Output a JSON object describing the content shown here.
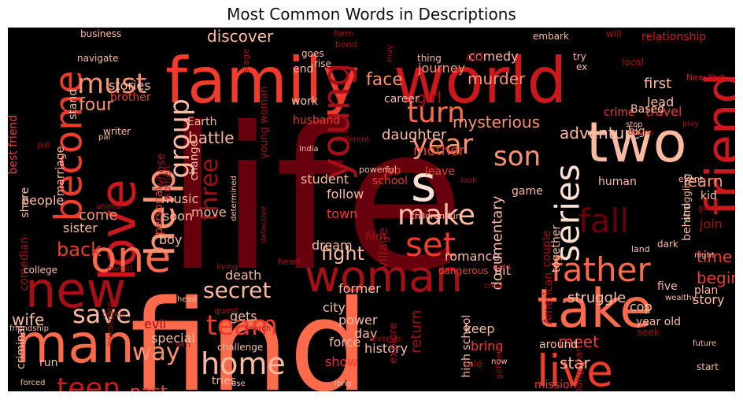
{
  "chart_data": {
    "type": "wordcloud",
    "title": "Most Common Words in Descriptions",
    "background": "#000000",
    "palette": [
      "#67000d",
      "#a50f15",
      "#cb181d",
      "#ef3b2c",
      "#fb6a4a",
      "#fc9272",
      "#fcbba1",
      "#fee0d2"
    ],
    "words": [
      {
        "text": "life",
        "color": "#67000d"
      },
      {
        "text": "find",
        "color": "#fb6a4a"
      },
      {
        "text": "family",
        "color": "#ef3b2c"
      },
      {
        "text": "world",
        "color": "#cb181d"
      },
      {
        "text": "new",
        "color": "#a50f15"
      },
      {
        "text": "man",
        "color": "#fb6a4a"
      },
      {
        "text": "love",
        "color": "#cb181d"
      },
      {
        "text": "woman",
        "color": "#a50f15"
      },
      {
        "text": "take",
        "color": "#fb6a4a"
      },
      {
        "text": "two",
        "color": "#fcbba1"
      },
      {
        "text": "friend",
        "color": "#cb181d"
      },
      {
        "text": "live",
        "color": "#ef3b2c"
      },
      {
        "text": "one",
        "color": "#fb6a4a"
      },
      {
        "text": "help",
        "color": "#fc9272"
      },
      {
        "text": "become",
        "color": "#ef3b2c"
      },
      {
        "text": "s",
        "color": "#fee0d2"
      },
      {
        "text": "young",
        "color": "#a50f15"
      },
      {
        "text": "father",
        "color": "#fb6a4a"
      },
      {
        "text": "home",
        "color": "#fcbba1"
      },
      {
        "text": "team",
        "color": "#ef3b2c"
      },
      {
        "text": "teen",
        "color": "#cb181d"
      },
      {
        "text": "save",
        "color": "#fcbba1"
      },
      {
        "text": "set",
        "color": "#ef3b2c"
      },
      {
        "text": "make",
        "color": "#fcbba1"
      },
      {
        "text": "series",
        "color": "#fee0d2"
      },
      {
        "text": "fall",
        "color": "#67000d"
      },
      {
        "text": "son",
        "color": "#fc9272"
      },
      {
        "text": "year",
        "color": "#fc9272"
      },
      {
        "text": "turn",
        "color": "#fb6a4a"
      },
      {
        "text": "must",
        "color": "#fc9272"
      },
      {
        "text": "group",
        "color": "#fcbba1"
      },
      {
        "text": "three",
        "color": "#a50f15"
      },
      {
        "text": "way",
        "color": "#fc9272"
      },
      {
        "text": "secret",
        "color": "#fcbba1"
      },
      {
        "text": "back",
        "color": "#ef3b2c"
      },
      {
        "text": "fight",
        "color": "#fcbba1"
      },
      {
        "text": "past",
        "color": "#ef3b2c"
      },
      {
        "text": "wife",
        "color": "#fcbba1"
      },
      {
        "text": "discover",
        "color": "#fcbba1"
      },
      {
        "text": "face",
        "color": "#fc9272"
      },
      {
        "text": "four",
        "color": "#fc9272"
      },
      {
        "text": "battle",
        "color": "#fcbba1"
      },
      {
        "text": "stories",
        "color": "#fcbba1"
      },
      {
        "text": "journey",
        "color": "#fc9272"
      },
      {
        "text": "murder",
        "color": "#fc9272"
      },
      {
        "text": "relationship",
        "color": "#cb181d"
      },
      {
        "text": "first",
        "color": "#fcbba1"
      },
      {
        "text": "lead",
        "color": "#fcbba1"
      },
      {
        "text": "crime",
        "color": "#ef3b2c"
      },
      {
        "text": "travel",
        "color": "#ef3b2c"
      },
      {
        "text": "New York",
        "color": "#cb181d"
      },
      {
        "text": "girl",
        "color": "#a50f15"
      },
      {
        "text": "mysterious",
        "color": "#fc9272"
      },
      {
        "text": "adventure",
        "color": "#fcbba1"
      },
      {
        "text": "daughter",
        "color": "#fcbba1"
      },
      {
        "text": "mother",
        "color": "#ef3b2c"
      },
      {
        "text": "documentary",
        "color": "#fcbba1"
      },
      {
        "text": "time",
        "color": "#ef3b2c"
      },
      {
        "text": "begin",
        "color": "#ef3b2c"
      },
      {
        "text": "learn",
        "color": "#fc9272"
      },
      {
        "text": "struggle",
        "color": "#fcbba1"
      },
      {
        "text": "meet",
        "color": "#ef3b2c"
      },
      {
        "text": "star",
        "color": "#fcbba1"
      },
      {
        "text": "return",
        "color": "#a50f15"
      },
      {
        "text": "high school",
        "color": "#fcbba1"
      },
      {
        "text": "husband",
        "color": "#ef3b2c"
      },
      {
        "text": "student",
        "color": "#fcbba1"
      },
      {
        "text": "follow",
        "color": "#fcbba1"
      },
      {
        "text": "town",
        "color": "#ef3b2c"
      },
      {
        "text": "dream",
        "color": "#fcbba1"
      },
      {
        "text": "village",
        "color": "#a50f15"
      },
      {
        "text": "romance",
        "color": "#fcbba1"
      },
      {
        "text": "film",
        "color": "#a50f15"
      },
      {
        "text": "comedy",
        "color": "#fcbba1"
      },
      {
        "text": "career",
        "color": "#fcbba1"
      },
      {
        "text": "work",
        "color": "#fcbba1"
      },
      {
        "text": "Earth",
        "color": "#fcbba1"
      },
      {
        "text": "change",
        "color": "#fcbba1"
      },
      {
        "text": "brother",
        "color": "#ef3b2c"
      },
      {
        "text": "Based",
        "color": "#fcbba1"
      },
      {
        "text": "big",
        "color": "#fcbba1"
      },
      {
        "text": "human",
        "color": "#fcbba1"
      },
      {
        "text": "kid",
        "color": "#fcbba1"
      },
      {
        "text": "join",
        "color": "#a50f15"
      },
      {
        "text": "behind",
        "color": "#fcbba1"
      },
      {
        "text": "game",
        "color": "#fcbba1"
      },
      {
        "text": "job",
        "color": "#ef3b2c"
      },
      {
        "text": "leave",
        "color": "#ef3b2c"
      },
      {
        "text": "school",
        "color": "#ef3b2c"
      },
      {
        "text": "sister",
        "color": "#fcbba1"
      },
      {
        "text": "come",
        "color": "#fc9272"
      },
      {
        "text": "people",
        "color": "#fcbba1"
      },
      {
        "text": "soon",
        "color": "#fcbba1"
      },
      {
        "text": "music",
        "color": "#fcbba1"
      },
      {
        "text": "move",
        "color": "#fcbba1"
      },
      {
        "text": "personal",
        "color": "#ef3b2c"
      },
      {
        "text": "women",
        "color": "#a50f15"
      },
      {
        "text": "whose",
        "color": "#a50f15"
      },
      {
        "text": "marriage",
        "color": "#fcbba1"
      },
      {
        "text": "stand",
        "color": "#fcbba1"
      },
      {
        "text": "best friend",
        "color": "#ef3b2c"
      },
      {
        "text": "share",
        "color": "#fcbba1"
      },
      {
        "text": "comedian",
        "color": "#a50f15"
      },
      {
        "text": "college",
        "color": "#fcbba1"
      },
      {
        "text": "boy",
        "color": "#fcbba1"
      },
      {
        "text": "death",
        "color": "#fcbba1"
      },
      {
        "text": "city",
        "color": "#fcbba1"
      },
      {
        "text": "force",
        "color": "#fcbba1"
      },
      {
        "text": "former",
        "color": "#fcbba1"
      },
      {
        "text": "power",
        "color": "#fcbba1"
      },
      {
        "text": "day",
        "color": "#fcbba1"
      },
      {
        "text": "history",
        "color": "#fcbba1"
      },
      {
        "text": "show",
        "color": "#ef3b2c"
      },
      {
        "text": "gets",
        "color": "#fcbba1"
      },
      {
        "text": "special",
        "color": "#fcbba1"
      },
      {
        "text": "evil",
        "color": "#a50f15"
      },
      {
        "text": "criminal",
        "color": "#fcbba1"
      },
      {
        "text": "run",
        "color": "#fcbba1"
      },
      {
        "text": "tries",
        "color": "#fcbba1"
      },
      {
        "text": "explore",
        "color": "#a50f15"
      },
      {
        "text": "bring",
        "color": "#ef3b2c"
      },
      {
        "text": "keep",
        "color": "#fcbba1"
      },
      {
        "text": "around",
        "color": "#fcbba1"
      },
      {
        "text": "plan",
        "color": "#fcbba1"
      },
      {
        "text": "story",
        "color": "#fcbba1"
      },
      {
        "text": "five",
        "color": "#fcbba1"
      },
      {
        "text": "cop",
        "color": "#fcbba1"
      },
      {
        "text": "year old",
        "color": "#fcbba1"
      },
      {
        "text": "mission",
        "color": "#ef3b2c"
      },
      {
        "text": "American",
        "color": "#a50f15"
      },
      {
        "text": "couple",
        "color": "#a50f15"
      },
      {
        "text": "together",
        "color": "#fcbba1"
      },
      {
        "text": "hit",
        "color": "#fcbba1"
      },
      {
        "text": "young woman",
        "color": "#a50f15"
      },
      {
        "text": "young man",
        "color": "#a50f15"
      },
      {
        "text": "end",
        "color": "#fcbba1"
      },
      {
        "text": "old",
        "color": "#a50f15"
      },
      {
        "text": "business",
        "color": "#fcbba1"
      },
      {
        "text": "navigate",
        "color": "#fcbba1"
      },
      {
        "text": "embark",
        "color": "#fcbba1"
      },
      {
        "text": "will",
        "color": "#a50f15"
      },
      {
        "text": "goes",
        "color": "#fcbba1"
      },
      {
        "text": "rise",
        "color": "#fcbba1"
      },
      {
        "text": "thing",
        "color": "#fcbba1"
      },
      {
        "text": "try",
        "color": "#fcbba1"
      },
      {
        "text": "stop",
        "color": "#fcbba1"
      },
      {
        "text": "local",
        "color": "#a50f15"
      },
      {
        "text": "India",
        "color": "#fcbba1"
      },
      {
        "text": "different",
        "color": "#a50f15"
      },
      {
        "text": "powerful",
        "color": "#fcbba1"
      },
      {
        "text": "determined",
        "color": "#fcbba1"
      },
      {
        "text": "detective",
        "color": "#a50f15"
      },
      {
        "text": "children",
        "color": "#fcbba1"
      },
      {
        "text": "fun",
        "color": "#fcbba1"
      },
      {
        "text": "dangerous",
        "color": "#ef3b2c"
      },
      {
        "text": "heart",
        "color": "#a50f15"
      },
      {
        "text": "living",
        "color": "#a50f15"
      },
      {
        "text": "parent",
        "color": "#a50f15"
      },
      {
        "text": "animal",
        "color": "#a50f15"
      },
      {
        "text": "child",
        "color": "#a50f15"
      },
      {
        "text": "crew",
        "color": "#a50f15"
      },
      {
        "text": "land",
        "color": "#fcbba1"
      },
      {
        "text": "dark",
        "color": "#fcbba1"
      },
      {
        "text": "night",
        "color": "#fcbba1"
      },
      {
        "text": "wealthy",
        "color": "#fcbba1"
      },
      {
        "text": "seek",
        "color": "#a50f15"
      },
      {
        "text": "future",
        "color": "#fcbba1"
      },
      {
        "text": "start",
        "color": "#fcbba1"
      },
      {
        "text": "event",
        "color": "#fcbba1"
      },
      {
        "text": "struggling",
        "color": "#fcbba1"
      },
      {
        "text": "drama",
        "color": "#a50f15"
      },
      {
        "text": "play",
        "color": "#a50f15"
      },
      {
        "text": "writer",
        "color": "#fcbba1"
      },
      {
        "text": "pal",
        "color": "#fcbba1"
      },
      {
        "text": "put",
        "color": "#a50f15"
      },
      {
        "text": "friendship",
        "color": "#fcbba1"
      },
      {
        "text": "forced",
        "color": "#fcbba1"
      },
      {
        "text": "use",
        "color": "#fcbba1"
      },
      {
        "text": "long",
        "color": "#fcbba1"
      },
      {
        "text": "comic",
        "color": "#a50f15"
      },
      {
        "text": "win",
        "color": "#a50f15"
      },
      {
        "text": "head",
        "color": "#fcbba1"
      },
      {
        "text": "investigate",
        "color": "#a50f15"
      },
      {
        "text": "search",
        "color": "#a50f15"
      },
      {
        "text": "revenge",
        "color": "#a50f15"
      },
      {
        "text": "quest",
        "color": "#a50f15"
      },
      {
        "text": "tale",
        "color": "#a50f15"
      },
      {
        "text": "challenge",
        "color": "#fcbba1"
      },
      {
        "text": "now",
        "color": "#fcbba1"
      },
      {
        "text": "girlfriend",
        "color": "#a50f15"
      },
      {
        "text": "gang",
        "color": "#a50f15"
      },
      {
        "text": "stage",
        "color": "#a50f15"
      },
      {
        "text": "form",
        "color": "#a50f15"
      },
      {
        "text": "bond",
        "color": "#a50f15"
      },
      {
        "text": "may",
        "color": "#a50f15"
      },
      {
        "text": "look",
        "color": "#a50f15"
      },
      {
        "text": "ex",
        "color": "#fcbba1"
      }
    ]
  }
}
